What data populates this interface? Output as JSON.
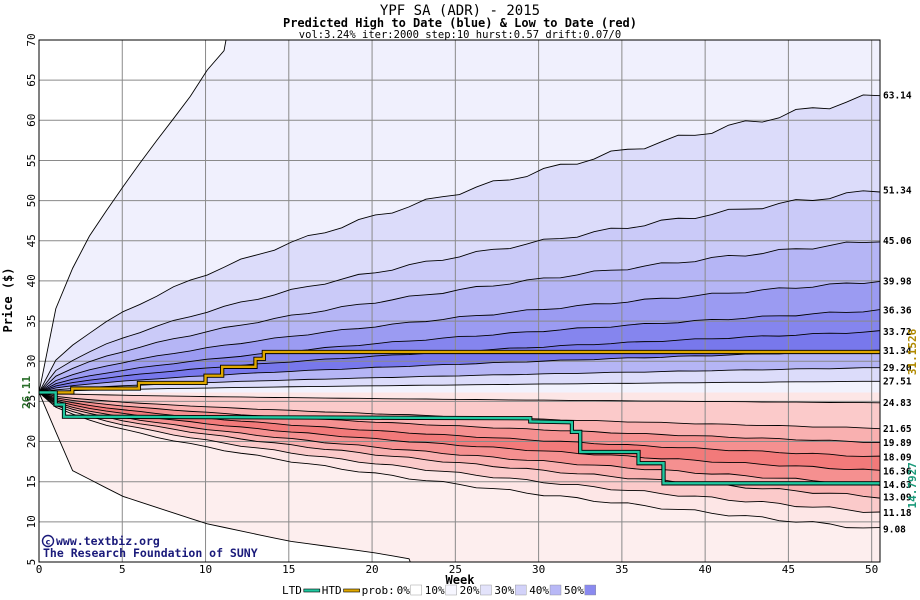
{
  "chart_data": {
    "type": "area",
    "title": "YPF SA (ADR) - 2015",
    "subtitle": "Predicted High to Date (blue) &  Low to Date (red)",
    "params": "vol:3.24% iter:2000 step:10 hurst:0.57 drift:0.07/0",
    "xlabel": "Week",
    "ylabel": "Price ($)",
    "xlim": [
      0,
      50.5
    ],
    "ylim": [
      5,
      70
    ],
    "xticks": [
      0,
      5,
      10,
      15,
      20,
      25,
      30,
      35,
      40,
      45,
      50
    ],
    "yticks": [
      5,
      10,
      15,
      20,
      25,
      30,
      35,
      40,
      45,
      50,
      55,
      60,
      65,
      70
    ],
    "start_price_label": "26.11",
    "start_price": 26.11,
    "high_band_ends": [
      {
        "label": "63.14",
        "value": 63.14,
        "color": "#dcdcfa"
      },
      {
        "label": "51.34",
        "value": 51.34,
        "color": "#cacaf8"
      },
      {
        "label": "45.06",
        "value": 45.06,
        "color": "#b5b5f5"
      },
      {
        "label": "39.98",
        "value": 39.98,
        "color": "#9b9bf2"
      },
      {
        "label": "36.36",
        "value": 36.36,
        "color": "#8585ee"
      },
      {
        "label": "33.72",
        "value": 33.72,
        "color": "#7878ec"
      },
      {
        "label": "31.34",
        "value": 31.34,
        "color": "#b5b5f5"
      },
      {
        "label": "29.20",
        "value": 29.2,
        "color": "#dcdcfa"
      },
      {
        "label": "27.51",
        "value": 27.51,
        "color": "#f2f2fd"
      }
    ],
    "low_band_ends": [
      {
        "label": "24.83",
        "value": 24.83,
        "color": "#fde6e6"
      },
      {
        "label": "21.65",
        "value": 21.65,
        "color": "#fbcaca"
      },
      {
        "label": "19.89",
        "value": 19.89,
        "color": "#f9b0b0"
      },
      {
        "label": "18.09",
        "value": 18.09,
        "color": "#f59090"
      },
      {
        "label": "16.36",
        "value": 16.36,
        "color": "#f27a7a"
      },
      {
        "label": "14.63",
        "value": 14.63,
        "color": "#f59090"
      },
      {
        "label": "13.09",
        "value": 13.09,
        "color": "#f9b0b0"
      },
      {
        "label": "11.18",
        "value": 11.18,
        "color": "#fbcaca"
      },
      {
        "label": "9.08",
        "value": 9.08,
        "color": "#fde6e6"
      }
    ],
    "outer_high_curve": {
      "x": [
        0,
        1,
        2,
        3,
        4,
        5,
        6,
        7,
        8,
        9,
        10,
        11,
        12
      ],
      "y": [
        26.11,
        36.5,
        41.5,
        45.5,
        48.6,
        51.6,
        54.5,
        57.3,
        60,
        62.7,
        66,
        68.5,
        70
      ]
    },
    "outer_low_curve": {
      "x": [
        0,
        2,
        5,
        10,
        15,
        20,
        22.5
      ],
      "y": [
        26.11,
        16.4,
        13.2,
        9.8,
        7.6,
        6.2,
        5.3
      ]
    },
    "htd_series": {
      "name": "HTD",
      "color": "#e0a800",
      "x": [
        0,
        2,
        2,
        6,
        6,
        10,
        10,
        11,
        11,
        13,
        13,
        13.5,
        13.5,
        50.5
      ],
      "y": [
        26.11,
        26.11,
        26.6,
        26.6,
        27.3,
        27.3,
        28.2,
        28.2,
        29.3,
        29.3,
        30.3,
        30.3,
        31.1526,
        31.1526
      ],
      "end_label": "31.1526"
    },
    "ltd_series": {
      "name": "LTD",
      "color": "#20c8a0",
      "x": [
        0,
        1,
        1,
        1.5,
        1.5,
        29.5,
        29.5,
        32,
        32,
        32.5,
        32.5,
        36,
        36,
        37.5,
        37.5,
        50.5
      ],
      "y": [
        26.11,
        26.11,
        24.6,
        24.6,
        23.1,
        22.9,
        22.5,
        22.4,
        21.2,
        21.2,
        18.7,
        18.7,
        17.3,
        17.3,
        14.7927,
        14.7927
      ],
      "end_label": "14.7927"
    },
    "legend": {
      "ltd": "LTD",
      "htd": "HTD",
      "prob": "prob:",
      "items": [
        {
          "label": "0%",
          "color": "#ffffff"
        },
        {
          "label": "10%",
          "color": "#f6f6ff"
        },
        {
          "label": "20%",
          "color": "#e3e3fb"
        },
        {
          "label": "30%",
          "color": "#d2d2f9"
        },
        {
          "label": "40%",
          "color": "#b8b8f6"
        },
        {
          "label": "50%",
          "color": "#8a8af0"
        }
      ],
      "placement": "bottom-center"
    },
    "grid": true
  },
  "credit": {
    "line1": "www.textbiz.org",
    "line2": "The Research Foundation of SUNY"
  }
}
